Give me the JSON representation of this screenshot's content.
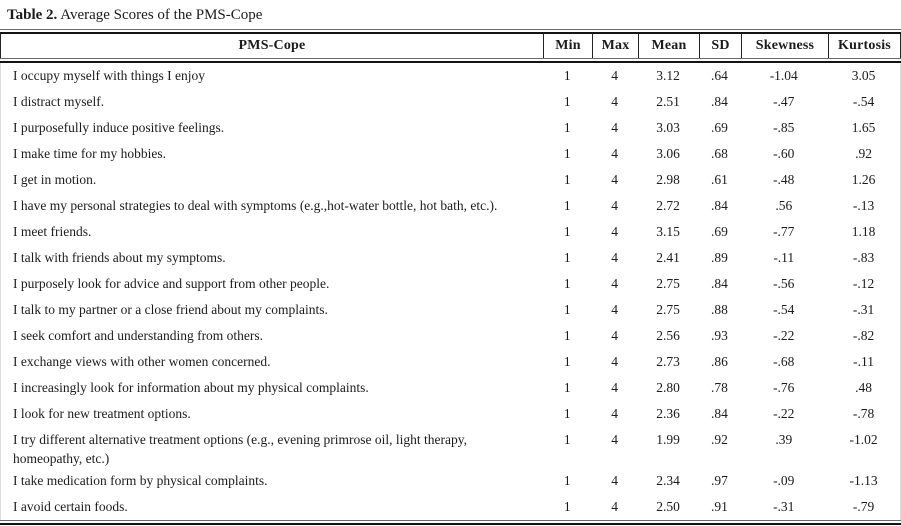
{
  "title": {
    "label": "Table 2.",
    "text": "Average Scores of the PMS-Cope"
  },
  "table": {
    "columns": [
      "PMS-Cope",
      "Min",
      "Max",
      "Mean",
      "SD",
      "Skewness",
      "Kurtosis"
    ],
    "rows": [
      {
        "item": "I occupy myself with things I enjoy",
        "min": "1",
        "max": "4",
        "mean": "3.12",
        "sd": ".64",
        "skewness": "-1.04",
        "kurtosis": "3.05"
      },
      {
        "item": "I distract myself.",
        "min": "1",
        "max": "4",
        "mean": "2.51",
        "sd": ".84",
        "skewness": "-.47",
        "kurtosis": "-.54"
      },
      {
        "item": "I purposefully induce positive feelings.",
        "min": "1",
        "max": "4",
        "mean": "3.03",
        "sd": ".69",
        "skewness": "-.85",
        "kurtosis": "1.65"
      },
      {
        "item": "I make time for my hobbies.",
        "min": "1",
        "max": "4",
        "mean": "3.06",
        "sd": ".68",
        "skewness": "-.60",
        "kurtosis": ".92"
      },
      {
        "item": "I get in motion.",
        "min": "1",
        "max": "4",
        "mean": "2.98",
        "sd": ".61",
        "skewness": "-.48",
        "kurtosis": "1.26"
      },
      {
        "item": "I have my personal strategies to deal with symptoms (e.g.,hot-water bottle, hot bath, etc.).",
        "min": "1",
        "max": "4",
        "mean": "2.72",
        "sd": ".84",
        "skewness": ".56",
        "kurtosis": "-.13"
      },
      {
        "item": "I meet friends.",
        "min": "1",
        "max": "4",
        "mean": "3.15",
        "sd": ".69",
        "skewness": "-.77",
        "kurtosis": "1.18"
      },
      {
        "item": "I talk with friends about my symptoms.",
        "min": "1",
        "max": "4",
        "mean": "2.41",
        "sd": ".89",
        "skewness": "-.11",
        "kurtosis": "-.83"
      },
      {
        "item": "I purposely look for advice and support from other people.",
        "min": "1",
        "max": "4",
        "mean": "2.75",
        "sd": ".84",
        "skewness": "-.56",
        "kurtosis": "-.12"
      },
      {
        "item": "I talk to my partner or a close friend about my complaints.",
        "min": "1",
        "max": "4",
        "mean": "2.75",
        "sd": ".88",
        "skewness": "-.54",
        "kurtosis": "-.31"
      },
      {
        "item": "I seek comfort and understanding from others.",
        "min": "1",
        "max": "4",
        "mean": "2.56",
        "sd": ".93",
        "skewness": "-.22",
        "kurtosis": "-.82"
      },
      {
        "item": "I exchange views with other women concerned.",
        "min": "1",
        "max": "4",
        "mean": "2.73",
        "sd": ".86",
        "skewness": "-.68",
        "kurtosis": "-.11"
      },
      {
        "item": "I increasingly look for information about my physical complaints.",
        "min": "1",
        "max": "4",
        "mean": "2.80",
        "sd": ".78",
        "skewness": "-.76",
        "kurtosis": ".48"
      },
      {
        "item": "I look for new treatment options.",
        "min": "1",
        "max": "4",
        "mean": "2.36",
        "sd": ".84",
        "skewness": "-.22",
        "kurtosis": "-.78"
      },
      {
        "item": "I try different alternative treatment options (e.g., evening primrose oil, light therapy, homeopathy, etc.)",
        "min": "1",
        "max": "4",
        "mean": "1.99",
        "sd": ".92",
        "skewness": ".39",
        "kurtosis": "-1.02"
      },
      {
        "item": "I take medication form by physical complaints.",
        "min": "1",
        "max": "4",
        "mean": "2.34",
        "sd": ".97",
        "skewness": "-.09",
        "kurtosis": "-1.13"
      },
      {
        "item": "I avoid certain foods.",
        "min": "1",
        "max": "4",
        "mean": "2.50",
        "sd": ".91",
        "skewness": "-.31",
        "kurtosis": "-.79"
      }
    ]
  }
}
